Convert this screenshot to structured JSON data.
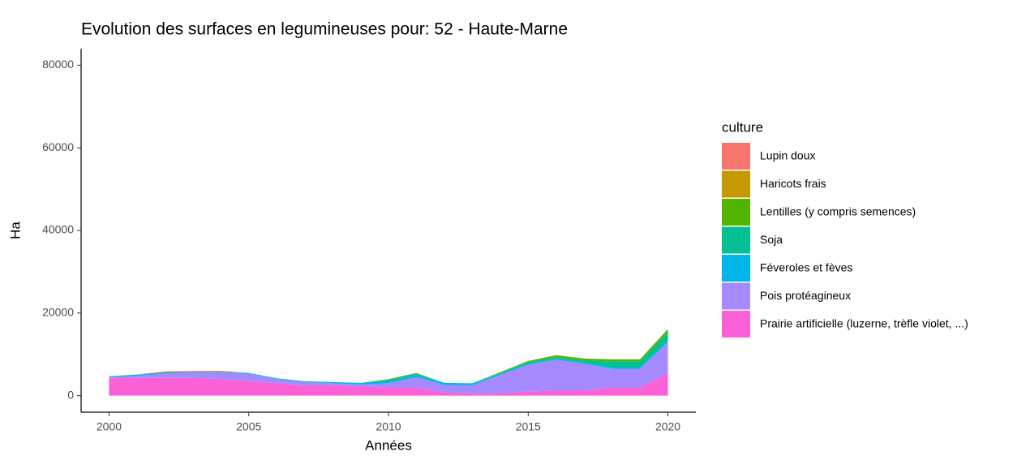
{
  "chart_data": {
    "type": "stacked_area",
    "title": "Evolution des surfaces en legumineuses pour: 52 - Haute-Marne",
    "x_label": "Années",
    "y_label": "Ha",
    "legend_title": "culture",
    "x": [
      2000,
      2001,
      2002,
      2003,
      2004,
      2005,
      2006,
      2007,
      2008,
      2009,
      2010,
      2011,
      2012,
      2013,
      2014,
      2015,
      2016,
      2017,
      2018,
      2019,
      2020
    ],
    "series": [
      {
        "name": "Lupin doux",
        "color": "#f8766d",
        "values": [
          0,
          0,
          300,
          300,
          300,
          0,
          0,
          0,
          0,
          0,
          0,
          0,
          0,
          0,
          0,
          0,
          0,
          0,
          0,
          0,
          0
        ]
      },
      {
        "name": "Haricots frais",
        "color": "#c49a00",
        "values": [
          0,
          0,
          0,
          0,
          0,
          0,
          0,
          0,
          0,
          0,
          0,
          0,
          0,
          0,
          0,
          0,
          0,
          0,
          0,
          0,
          0
        ]
      },
      {
        "name": "Lentilles (y compris semences)",
        "color": "#53b400",
        "values": [
          0,
          0,
          0,
          0,
          0,
          0,
          0,
          0,
          0,
          0,
          200,
          200,
          0,
          0,
          200,
          300,
          500,
          500,
          500,
          500,
          800
        ]
      },
      {
        "name": "Soja",
        "color": "#00c094",
        "values": [
          0,
          0,
          0,
          0,
          0,
          0,
          0,
          0,
          0,
          0,
          300,
          300,
          0,
          0,
          200,
          300,
          300,
          500,
          1500,
          1500,
          2000
        ]
      },
      {
        "name": "Féveroles et fèves",
        "color": "#00b6eb",
        "values": [
          200,
          300,
          300,
          200,
          200,
          200,
          200,
          200,
          300,
          400,
          500,
          500,
          500,
          500,
          300,
          300,
          300,
          300,
          300,
          300,
          300
        ]
      },
      {
        "name": "Pois protéagineux",
        "color": "#a58aff",
        "values": [
          300,
          500,
          1000,
          1200,
          1500,
          1800,
          1000,
          800,
          500,
          500,
          1000,
          2500,
          1800,
          2000,
          4500,
          6500,
          7500,
          6500,
          4500,
          4500,
          7500
        ]
      },
      {
        "name": "Prairie artificielle (luzerne, trèfle violet, ...)",
        "color": "#fb61d7",
        "values": [
          4200,
          4300,
          4300,
          4300,
          4000,
          3500,
          3000,
          2500,
          2500,
          2200,
          2000,
          2000,
          800,
          500,
          500,
          1000,
          1200,
          1200,
          2000,
          2000,
          5500
        ]
      }
    ],
    "xlim": [
      1999,
      2021
    ],
    "xticks": [
      2000,
      2005,
      2010,
      2015,
      2020
    ],
    "ylim": [
      -4000,
      84000
    ],
    "yticks": [
      0,
      20000,
      40000,
      60000,
      80000
    ],
    "grid": false
  }
}
